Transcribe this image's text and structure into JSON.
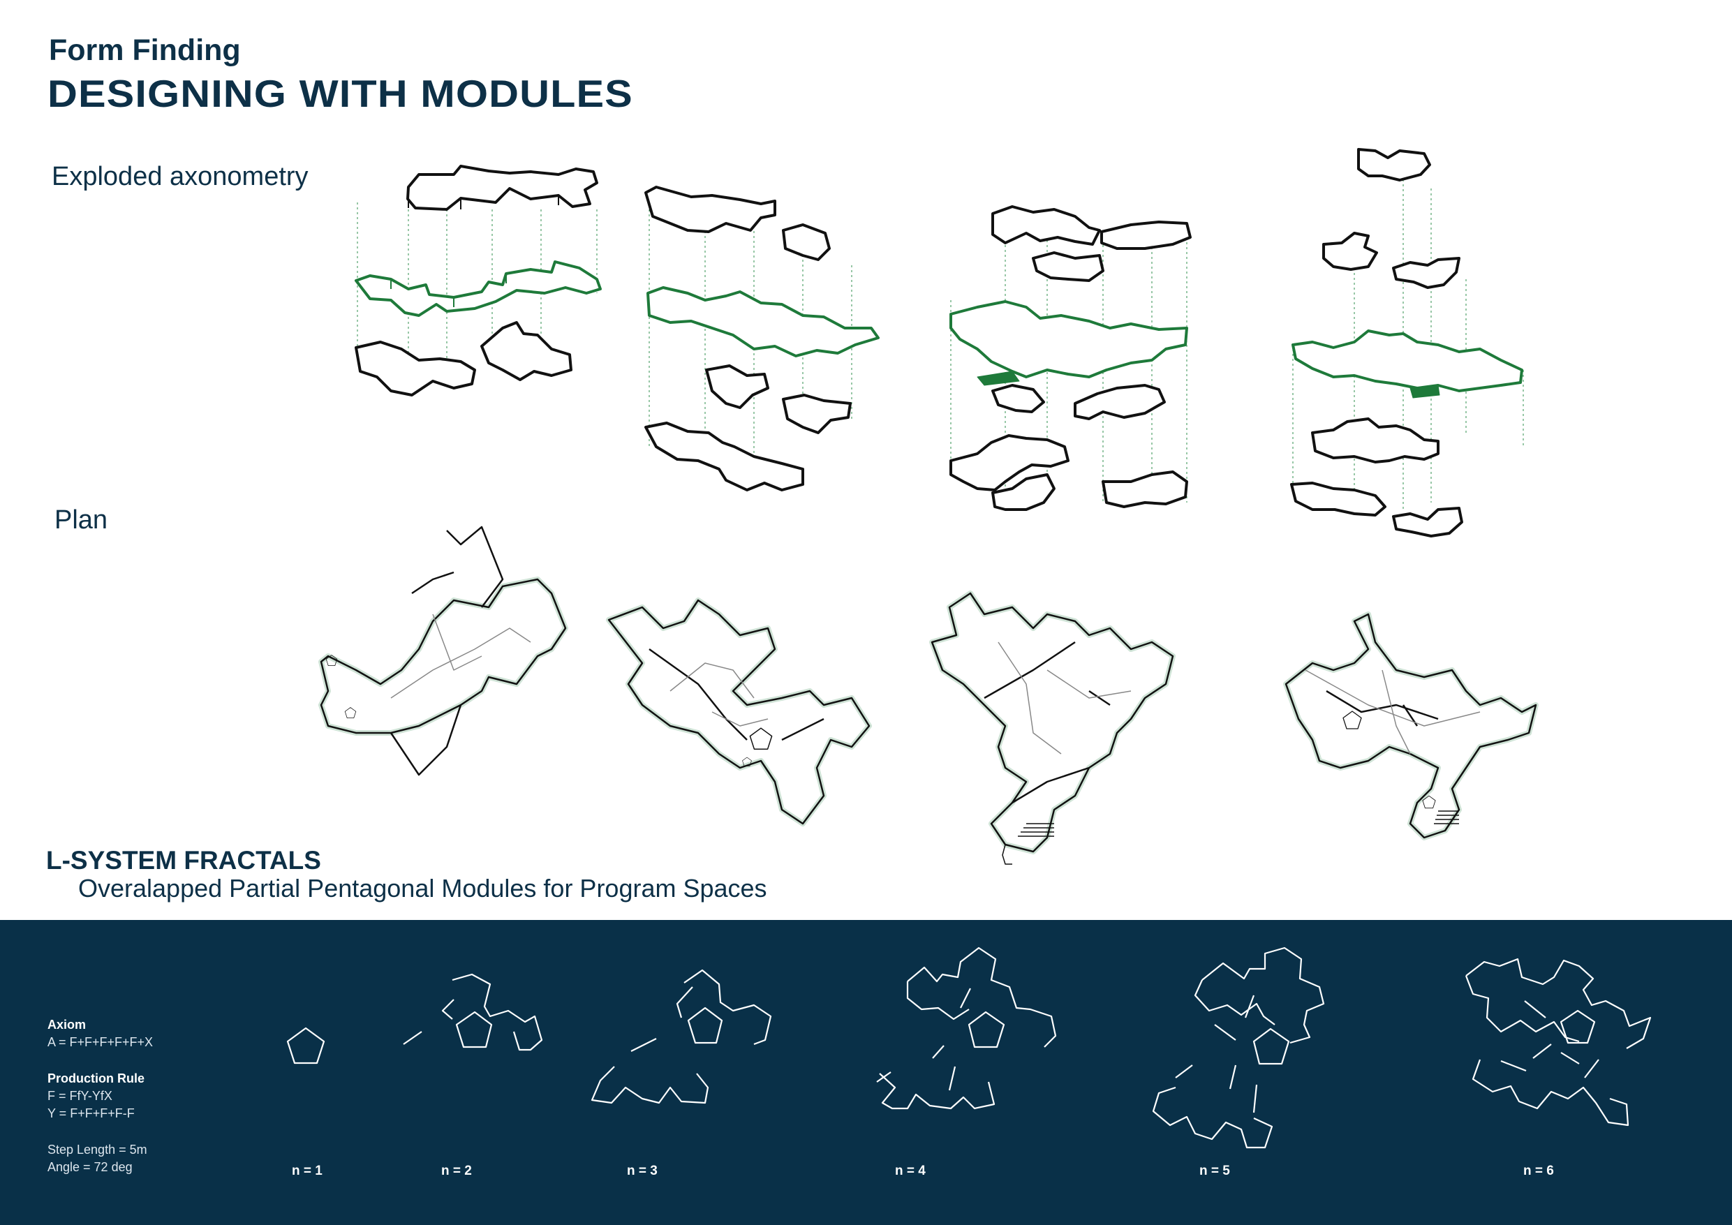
{
  "header": {
    "kicker": "Form Finding",
    "title": "DESIGNING WITH MODULES"
  },
  "sections": {
    "axonometry_label": "Exploded axonometry",
    "plan_label": "Plan"
  },
  "lsystem": {
    "title": "L-SYSTEM FRACTALS",
    "subtitle": "Overalapped Partial Pentagonal Modules for Program Spaces",
    "axiom_heading": "Axiom",
    "axiom": "A = F+F+F+F+F+X",
    "rule_heading": "Production Rule",
    "rule_f": "F = FfY-YfX",
    "rule_y": "Y = F+F+F+F-F",
    "step_length": "Step Length = 5m",
    "angle": "Angle = 72 deg",
    "iterations": [
      "n = 1",
      "n = 2",
      "n = 3",
      "n = 4",
      "n = 5",
      "n = 6"
    ]
  },
  "colors": {
    "navy": "#093048",
    "title": "#0d3047",
    "green": "#1e7a3a",
    "ink": "#1a1a1a"
  }
}
